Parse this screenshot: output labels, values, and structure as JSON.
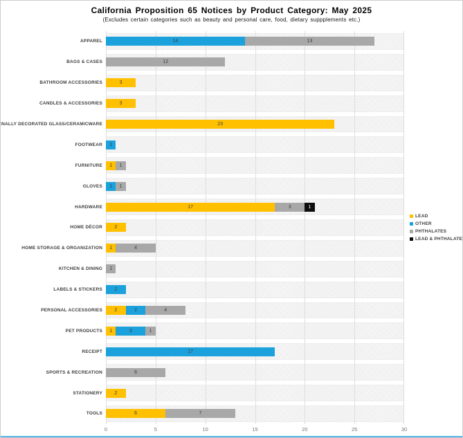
{
  "chart_data": {
    "type": "bar",
    "orientation": "horizontal",
    "stacked": true,
    "title": "California Proposition 65 Notices by Product Category: May 2025",
    "subtitle": "(Excludes certain categories such as beauty and personal care, food, dietary suppplements etc.)",
    "categories": [
      "APPAREL",
      "BAGS & CASES",
      "BATHROOM ACCESSORIES",
      "CANDLES & ACCESSORIES",
      "EXTERNALLY DECORATED GLASS/CERAMICWARE",
      "FOOTWEAR",
      "FURNITURE",
      "GLOVES",
      "HARDWARE",
      "HOME DÉCOR",
      "HOME STORAGE & ORGANIZATION",
      "KITCHEN & DINING",
      "LABELS & STICKERS",
      "PERSONAL ACCESSORIES",
      "PET PRODUCTS",
      "RECEIPT",
      "SPORTS & RECREATION",
      "STATIONERY",
      "TOOLS"
    ],
    "series": [
      {
        "name": "LEAD",
        "color": "#FFC000",
        "values": [
          0,
          0,
          3,
          3,
          23,
          0,
          1,
          0,
          17,
          2,
          1,
          0,
          0,
          2,
          1,
          0,
          0,
          2,
          6
        ]
      },
      {
        "name": "OTHER",
        "color": "#1BA1DC",
        "values": [
          14,
          0,
          0,
          0,
          0,
          1,
          0,
          1,
          0,
          0,
          0,
          0,
          2,
          2,
          3,
          17,
          0,
          0,
          0
        ]
      },
      {
        "name": "PHTHALATES",
        "color": "#A8A8A8",
        "values": [
          13,
          12,
          0,
          0,
          0,
          0,
          1,
          1,
          3,
          0,
          4,
          1,
          0,
          4,
          1,
          0,
          6,
          0,
          7
        ]
      },
      {
        "name": "LEAD & PHTHALATES",
        "color": "#0D0D0D",
        "values": [
          0,
          0,
          0,
          0,
          0,
          0,
          0,
          0,
          1,
          0,
          0,
          0,
          0,
          0,
          0,
          0,
          0,
          0,
          0
        ]
      }
    ],
    "xlim": [
      0,
      30
    ],
    "x_ticks": [
      0,
      5,
      10,
      15,
      20,
      25,
      30
    ],
    "grid": "vertical-ticks",
    "legend_position": "right-middle",
    "show_segment_value_labels": true
  }
}
